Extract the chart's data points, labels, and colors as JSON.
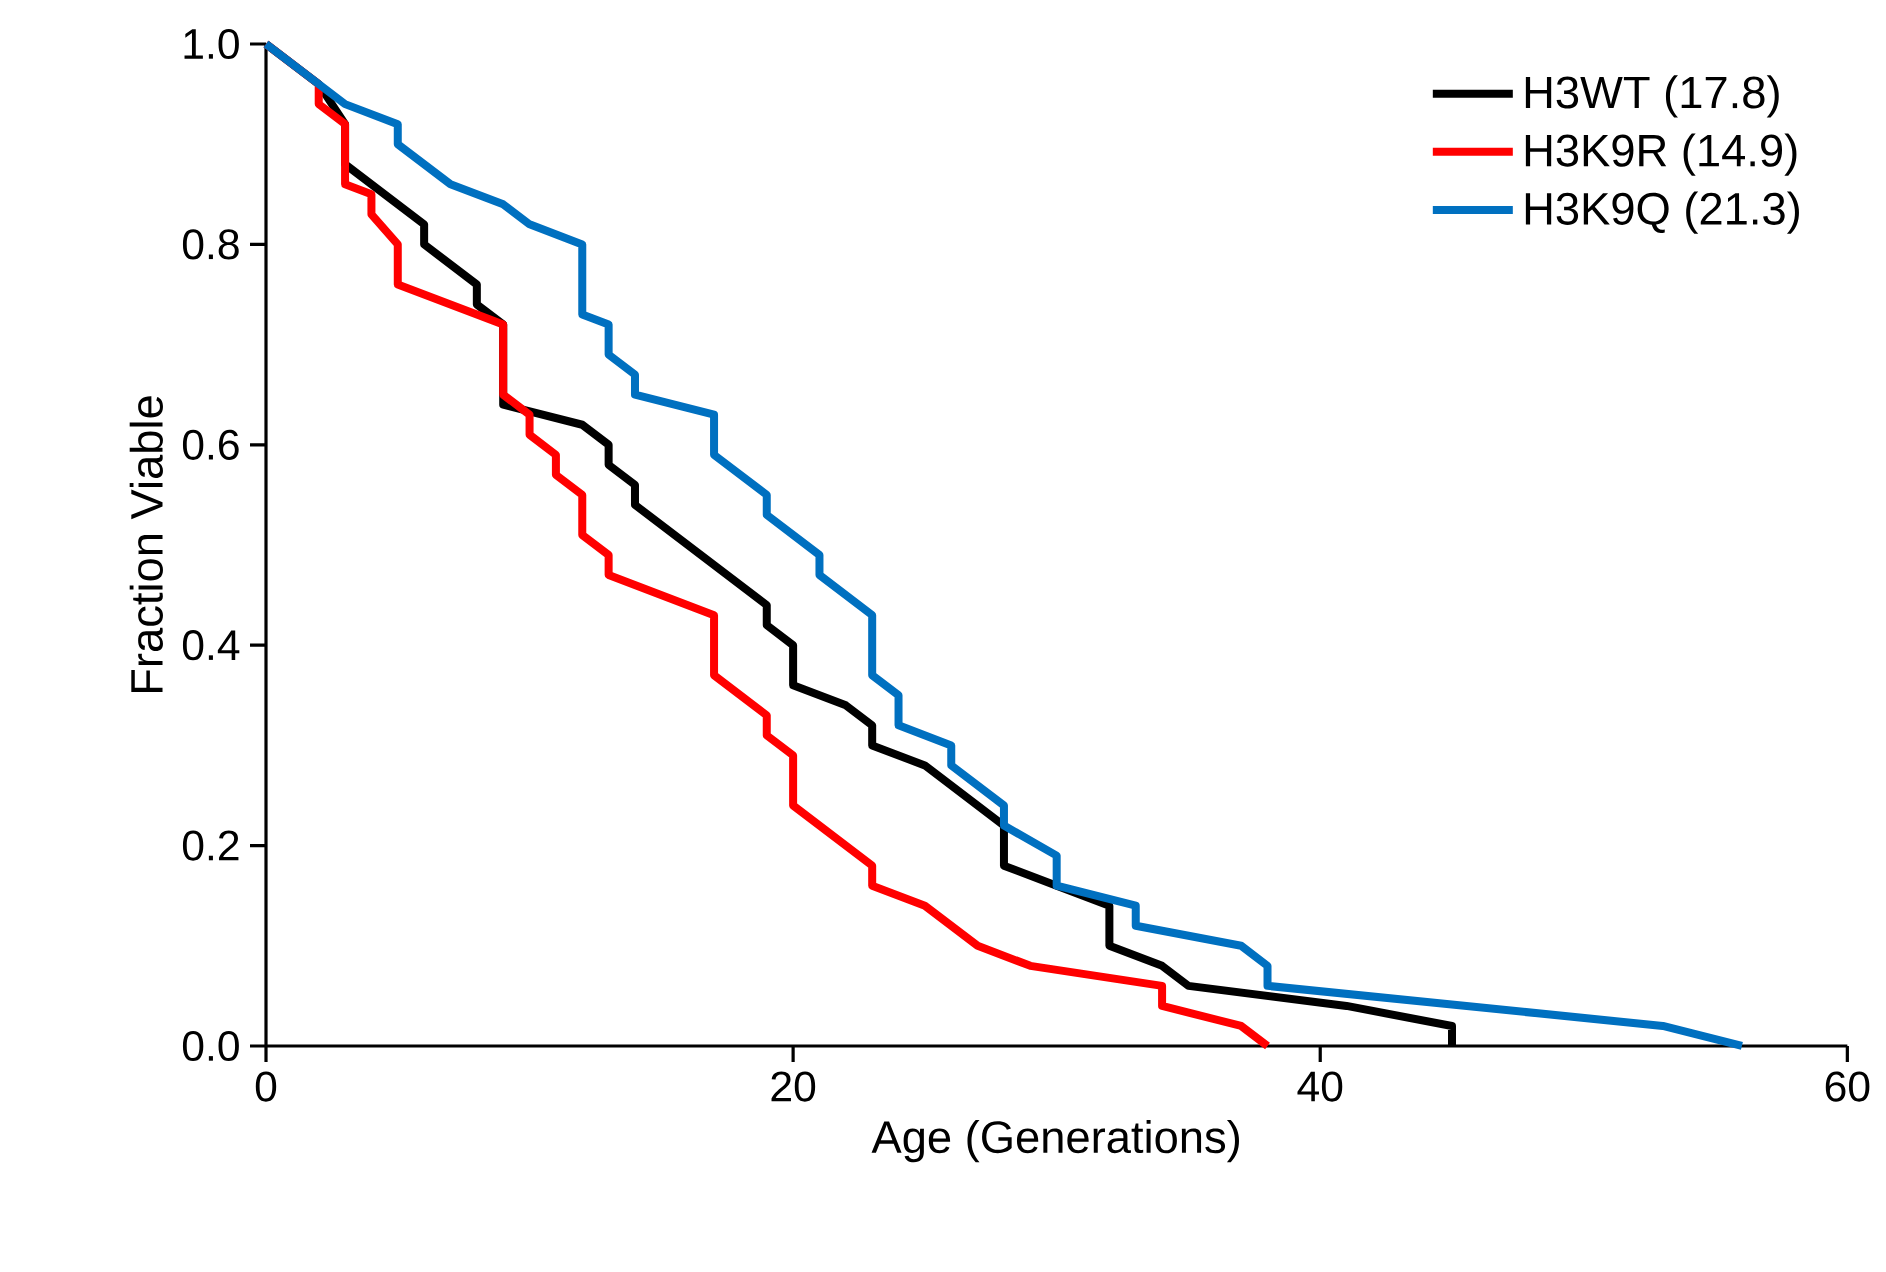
{
  "chart_data": {
    "type": "line",
    "xlabel": "Age (Generations)",
    "ylabel": "Fraction Viable",
    "xlim": [
      0,
      60
    ],
    "ylim": [
      0,
      1
    ],
    "xticks": [
      0,
      20,
      40,
      60
    ],
    "yticks": [
      {
        "value": 0,
        "label": "0.0"
      },
      {
        "value": 0.2,
        "label": "0.2"
      },
      {
        "value": 0.4,
        "label": "0.4"
      },
      {
        "value": 0.6,
        "label": "0.6"
      },
      {
        "value": 0.8,
        "label": "0.8"
      },
      {
        "value": 1,
        "label": "1.0"
      }
    ],
    "grid": false,
    "legend": "top right",
    "marker": "none",
    "line_style": "solid",
    "series": [
      {
        "name": "H3WT (17.8)",
        "color": "#000000",
        "x": [
          0,
          2,
          3,
          3,
          6,
          6,
          8,
          8,
          9,
          9,
          12,
          13,
          13,
          14,
          14,
          19,
          19,
          20,
          20,
          22,
          23,
          23,
          25,
          28,
          28,
          30,
          32,
          32,
          34,
          35,
          41,
          45,
          45
        ],
        "values": [
          1,
          0.96,
          0.92,
          0.88,
          0.82,
          0.8,
          0.76,
          0.74,
          0.72,
          0.64,
          0.62,
          0.6,
          0.58,
          0.56,
          0.54,
          0.44,
          0.42,
          0.4,
          0.36,
          0.34,
          0.32,
          0.3,
          0.28,
          0.22,
          0.18,
          0.16,
          0.14,
          0.1,
          0.08,
          0.06,
          0.04,
          0.02,
          0
        ]
      },
      {
        "name": "H3K9R (14.9)",
        "color": "#ff0000",
        "x": [
          0,
          2,
          2,
          3,
          3,
          4,
          4,
          5,
          5,
          9,
          9,
          10,
          10,
          11,
          11,
          12,
          12,
          13,
          13,
          17,
          17,
          19,
          19,
          20,
          20,
          23,
          23,
          25,
          27,
          29,
          34,
          34,
          37,
          38
        ],
        "values": [
          1,
          0.96,
          0.94,
          0.92,
          0.86,
          0.85,
          0.83,
          0.8,
          0.76,
          0.72,
          0.65,
          0.63,
          0.61,
          0.59,
          0.57,
          0.55,
          0.51,
          0.49,
          0.47,
          0.43,
          0.37,
          0.33,
          0.31,
          0.29,
          0.24,
          0.18,
          0.16,
          0.14,
          0.1,
          0.08,
          0.06,
          0.04,
          0.02,
          0
        ]
      },
      {
        "name": "H3K9Q (21.3)",
        "color": "#0070c0",
        "x": [
          0,
          3,
          5,
          5,
          7,
          9,
          10,
          12,
          12,
          13,
          13,
          14,
          14,
          17,
          17,
          19,
          19,
          21,
          21,
          23,
          23,
          24,
          24,
          26,
          26,
          28,
          28,
          30,
          30,
          33,
          33,
          37,
          38,
          38,
          53,
          56
        ],
        "values": [
          1,
          0.94,
          0.92,
          0.9,
          0.86,
          0.84,
          0.82,
          0.8,
          0.73,
          0.72,
          0.69,
          0.67,
          0.65,
          0.63,
          0.59,
          0.55,
          0.53,
          0.49,
          0.47,
          0.43,
          0.37,
          0.35,
          0.32,
          0.3,
          0.28,
          0.24,
          0.22,
          0.19,
          0.16,
          0.14,
          0.12,
          0.1,
          0.08,
          0.06,
          0.02,
          0
        ]
      }
    ]
  }
}
